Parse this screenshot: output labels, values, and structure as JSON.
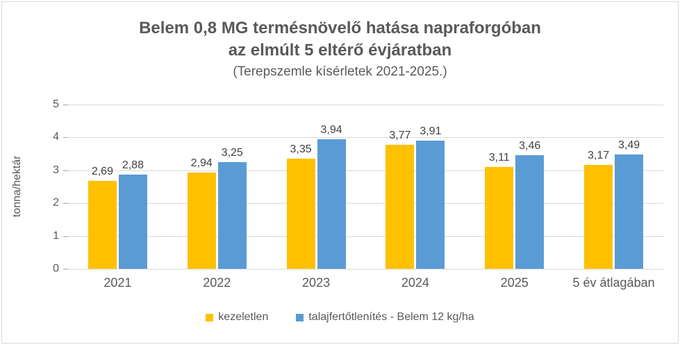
{
  "chart": {
    "title_line1": "Belem 0,8 MG termésnövelő hatása napraforgóban",
    "title_line2": "az elmúlt 5 eltérő évjáratban",
    "subtitle": "(Terepszemle kísérletek 2021-2025.)",
    "ylabel": "tonna/hektár"
  },
  "chart_data": {
    "type": "bar",
    "title": "Belem 0,8 MG termésnövelő hatása napraforgóban az elmúlt 5 eltérő évjáratban",
    "subtitle": "(Terepszemle kísérletek 2021-2025.)",
    "ylabel": "tonna/hektár",
    "xlabel": "",
    "ylim": [
      0,
      5
    ],
    "yticks": [
      0,
      1,
      2,
      3,
      4,
      5
    ],
    "grid": true,
    "legend_position": "bottom",
    "categories": [
      "2021",
      "2022",
      "2023",
      "2024",
      "2025",
      "5 év átlagában"
    ],
    "series": [
      {
        "name": "kezeletlen",
        "color": "#FFC000",
        "values": [
          2.69,
          2.94,
          3.35,
          3.77,
          3.11,
          3.17
        ],
        "labels": [
          "2,69",
          "2,94",
          "3,35",
          "3,77",
          "3,11",
          "3,17"
        ]
      },
      {
        "name": "talajfertőtlenítés - Belem 12 kg/ha",
        "color": "#5B9BD5",
        "values": [
          2.88,
          3.25,
          3.94,
          3.91,
          3.46,
          3.49
        ],
        "labels": [
          "2,88",
          "3,25",
          "3,94",
          "3,91",
          "3,46",
          "3,49"
        ]
      }
    ],
    "colors": {
      "axis_text": "#595959",
      "data_label": "#404040",
      "gridline": "#D9D9D9",
      "border": "#D9D9D9"
    }
  }
}
